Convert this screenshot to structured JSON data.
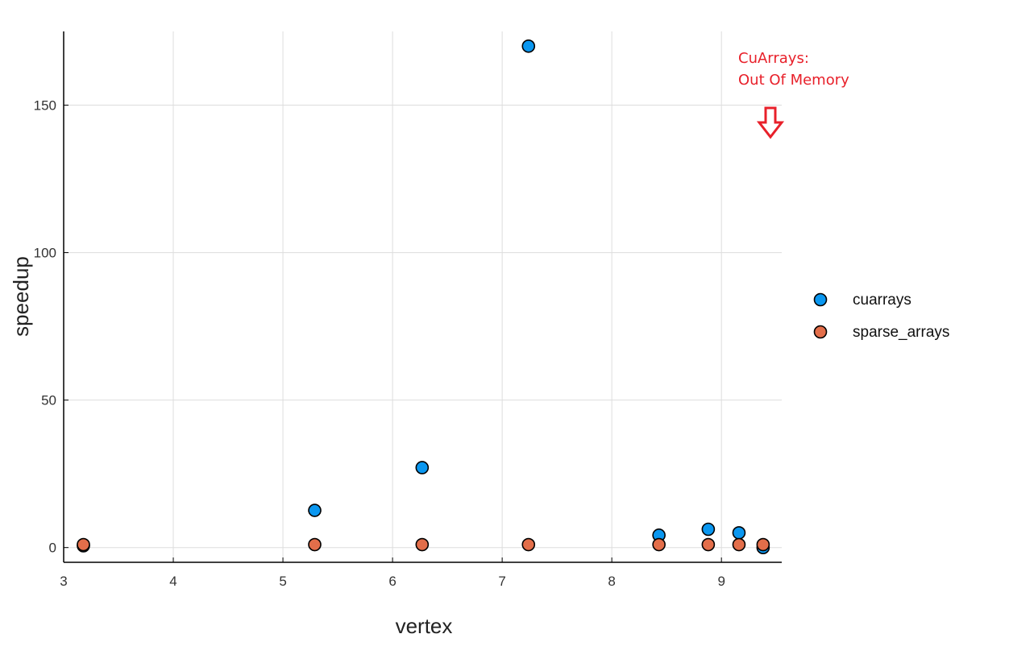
{
  "chart_data": {
    "type": "scatter",
    "title": "",
    "xlabel": "vertex",
    "ylabel": "speedup",
    "xlim": [
      3,
      9.55
    ],
    "ylim": [
      -5,
      175
    ],
    "xticks": [
      3,
      4,
      5,
      6,
      7,
      8,
      9
    ],
    "yticks": [
      0,
      50,
      100,
      150
    ],
    "xtick_labels": [
      "3",
      "4",
      "5",
      "6",
      "7",
      "8",
      "9"
    ],
    "ytick_labels": [
      "0",
      "50",
      "100",
      "150"
    ],
    "grid": true,
    "legend_position": "right",
    "series": [
      {
        "name": "cuarrays",
        "color": "#0a97f0",
        "x": [
          3.18,
          5.29,
          6.27,
          7.24,
          8.43,
          8.88,
          9.16,
          9.38
        ],
        "y": [
          0.6,
          12.6,
          27.1,
          170.0,
          4.2,
          6.2,
          5.0,
          0.0
        ]
      },
      {
        "name": "sparse_arrays",
        "color": "#e36e4a",
        "x": [
          3.18,
          5.29,
          6.27,
          7.24,
          8.43,
          8.88,
          9.16,
          9.38
        ],
        "y": [
          1.0,
          1.0,
          1.0,
          1.0,
          1.0,
          1.0,
          1.0,
          1.0
        ]
      }
    ],
    "annotation": {
      "lines": [
        "CuArrays:",
        "Out Of Memory"
      ],
      "color": "#e8202a",
      "arrow": "down-arrow-icon"
    }
  }
}
